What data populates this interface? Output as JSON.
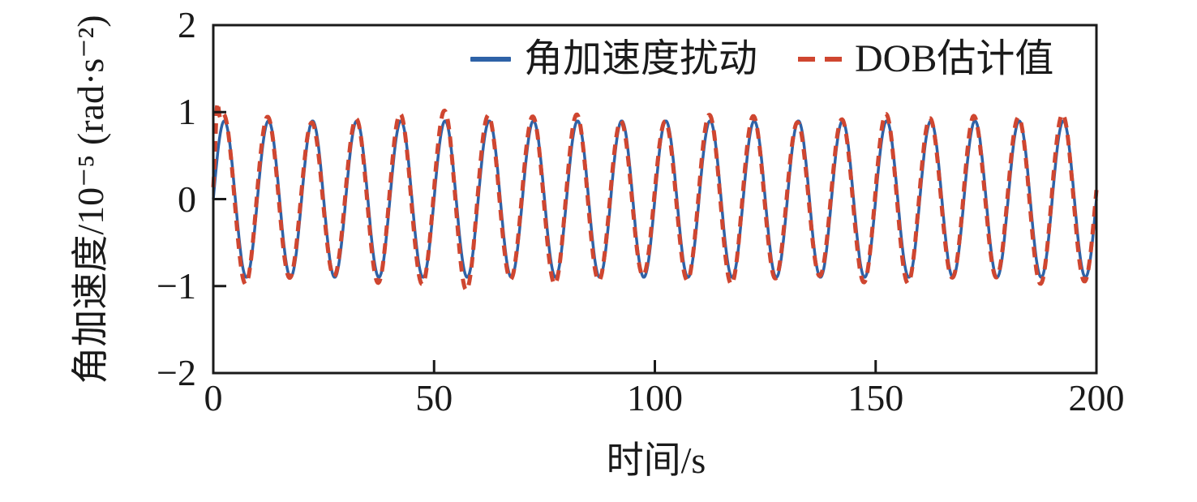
{
  "figure": {
    "background": "#ffffff",
    "text_color": "#1a1a1a"
  },
  "axes_frame": {
    "color": "#1a1a1a",
    "stroke_width": 3,
    "tick_length": 16
  },
  "chart_data": {
    "type": "line",
    "title": "",
    "xlabel": "时间/s",
    "ylabel": "角加速度/10⁻⁵ (rad·s⁻²)",
    "xlim": [
      0,
      200
    ],
    "ylim": [
      -2,
      2
    ],
    "grid": false,
    "legend_position": "inside-top-right",
    "x_ticks": {
      "values": [
        0,
        50,
        100,
        150,
        200
      ],
      "labels": [
        "0",
        "50",
        "100",
        "150",
        "200"
      ]
    },
    "y_ticks": {
      "values": [
        2,
        1,
        0,
        -1,
        -2
      ],
      "labels": [
        "2",
        "1",
        "0",
        "−1",
        "−2"
      ]
    },
    "sampling": {
      "t_start": 0,
      "t_end": 200,
      "dt": 0.2,
      "x_units": "s",
      "y_units": "10⁻⁵ rad·s⁻²"
    },
    "series": [
      {
        "name": "角加速度扰动",
        "color": "#2e62a7",
        "line_style": "solid",
        "stroke_width": 3.5,
        "model": {
          "kind": "sine",
          "base_amplitude": 0.9,
          "period_s": 10,
          "lead_s": 0
        }
      },
      {
        "name": "DOB估计值",
        "color": "#cf4630",
        "line_style": "dashed",
        "dash_pattern": [
          13,
          9
        ],
        "stroke_width": 5,
        "model": {
          "kind": "sine",
          "base_amplitude": 0.93,
          "period_s": 10,
          "lead_s": 0.18,
          "amplitude_wobble": {
            "amp": 0.05,
            "period_s": 37,
            "phase_rad": 0.7
          },
          "amplitude_bumps": [
            {
              "center_s": 57,
              "sigma_s": 6.5,
              "gain": 0.16
            },
            {
              "center_s": 171,
              "sigma_s": 2.5,
              "gain": 0.1
            }
          ],
          "additive_bumps": [
            {
              "center_s": 0.85,
              "sigma_s": 0.5,
              "height": 0.5
            }
          ]
        }
      }
    ]
  }
}
